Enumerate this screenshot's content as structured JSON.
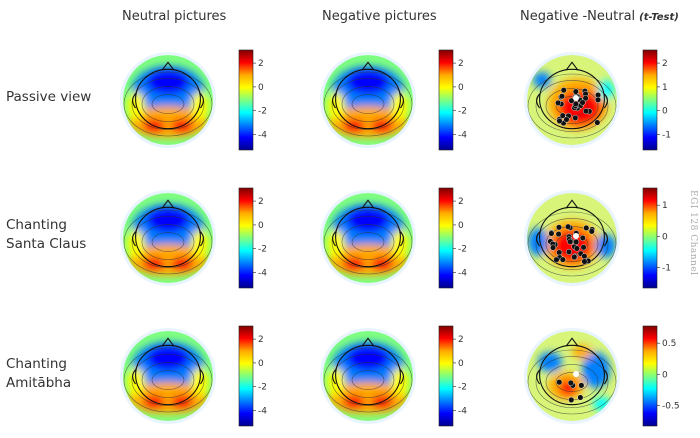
{
  "columns": [
    {
      "title": "Neutral pictures"
    },
    {
      "title": "Negative pictures"
    },
    {
      "title": "Negative -Neutral",
      "note": "(t-Test)"
    }
  ],
  "rows": [
    {
      "label_lines": [
        "Passive view"
      ]
    },
    {
      "label_lines": [
        "Chanting",
        "Santa Claus"
      ]
    },
    {
      "label_lines": [
        "Chanting",
        "Amitābha"
      ]
    }
  ],
  "side_note": "EGI 128 Channel",
  "colorbars": {
    "power_ticks": [
      "2",
      "0",
      "-2",
      "-4"
    ],
    "t_ticks_row1": [
      "2",
      "1",
      "0",
      "-1"
    ],
    "t_ticks_row2": [
      "1",
      "0",
      "-1"
    ],
    "t_ticks_row3": [
      "0.5",
      "0",
      "-0.5"
    ]
  },
  "colors": {
    "colormap": [
      "#7f0000",
      "#ff0000",
      "#ffaa00",
      "#ffff00",
      "#7fff7f",
      "#00ffff",
      "#0080ff",
      "#0000ff",
      "#00008f"
    ],
    "electrode": "#111111"
  }
}
